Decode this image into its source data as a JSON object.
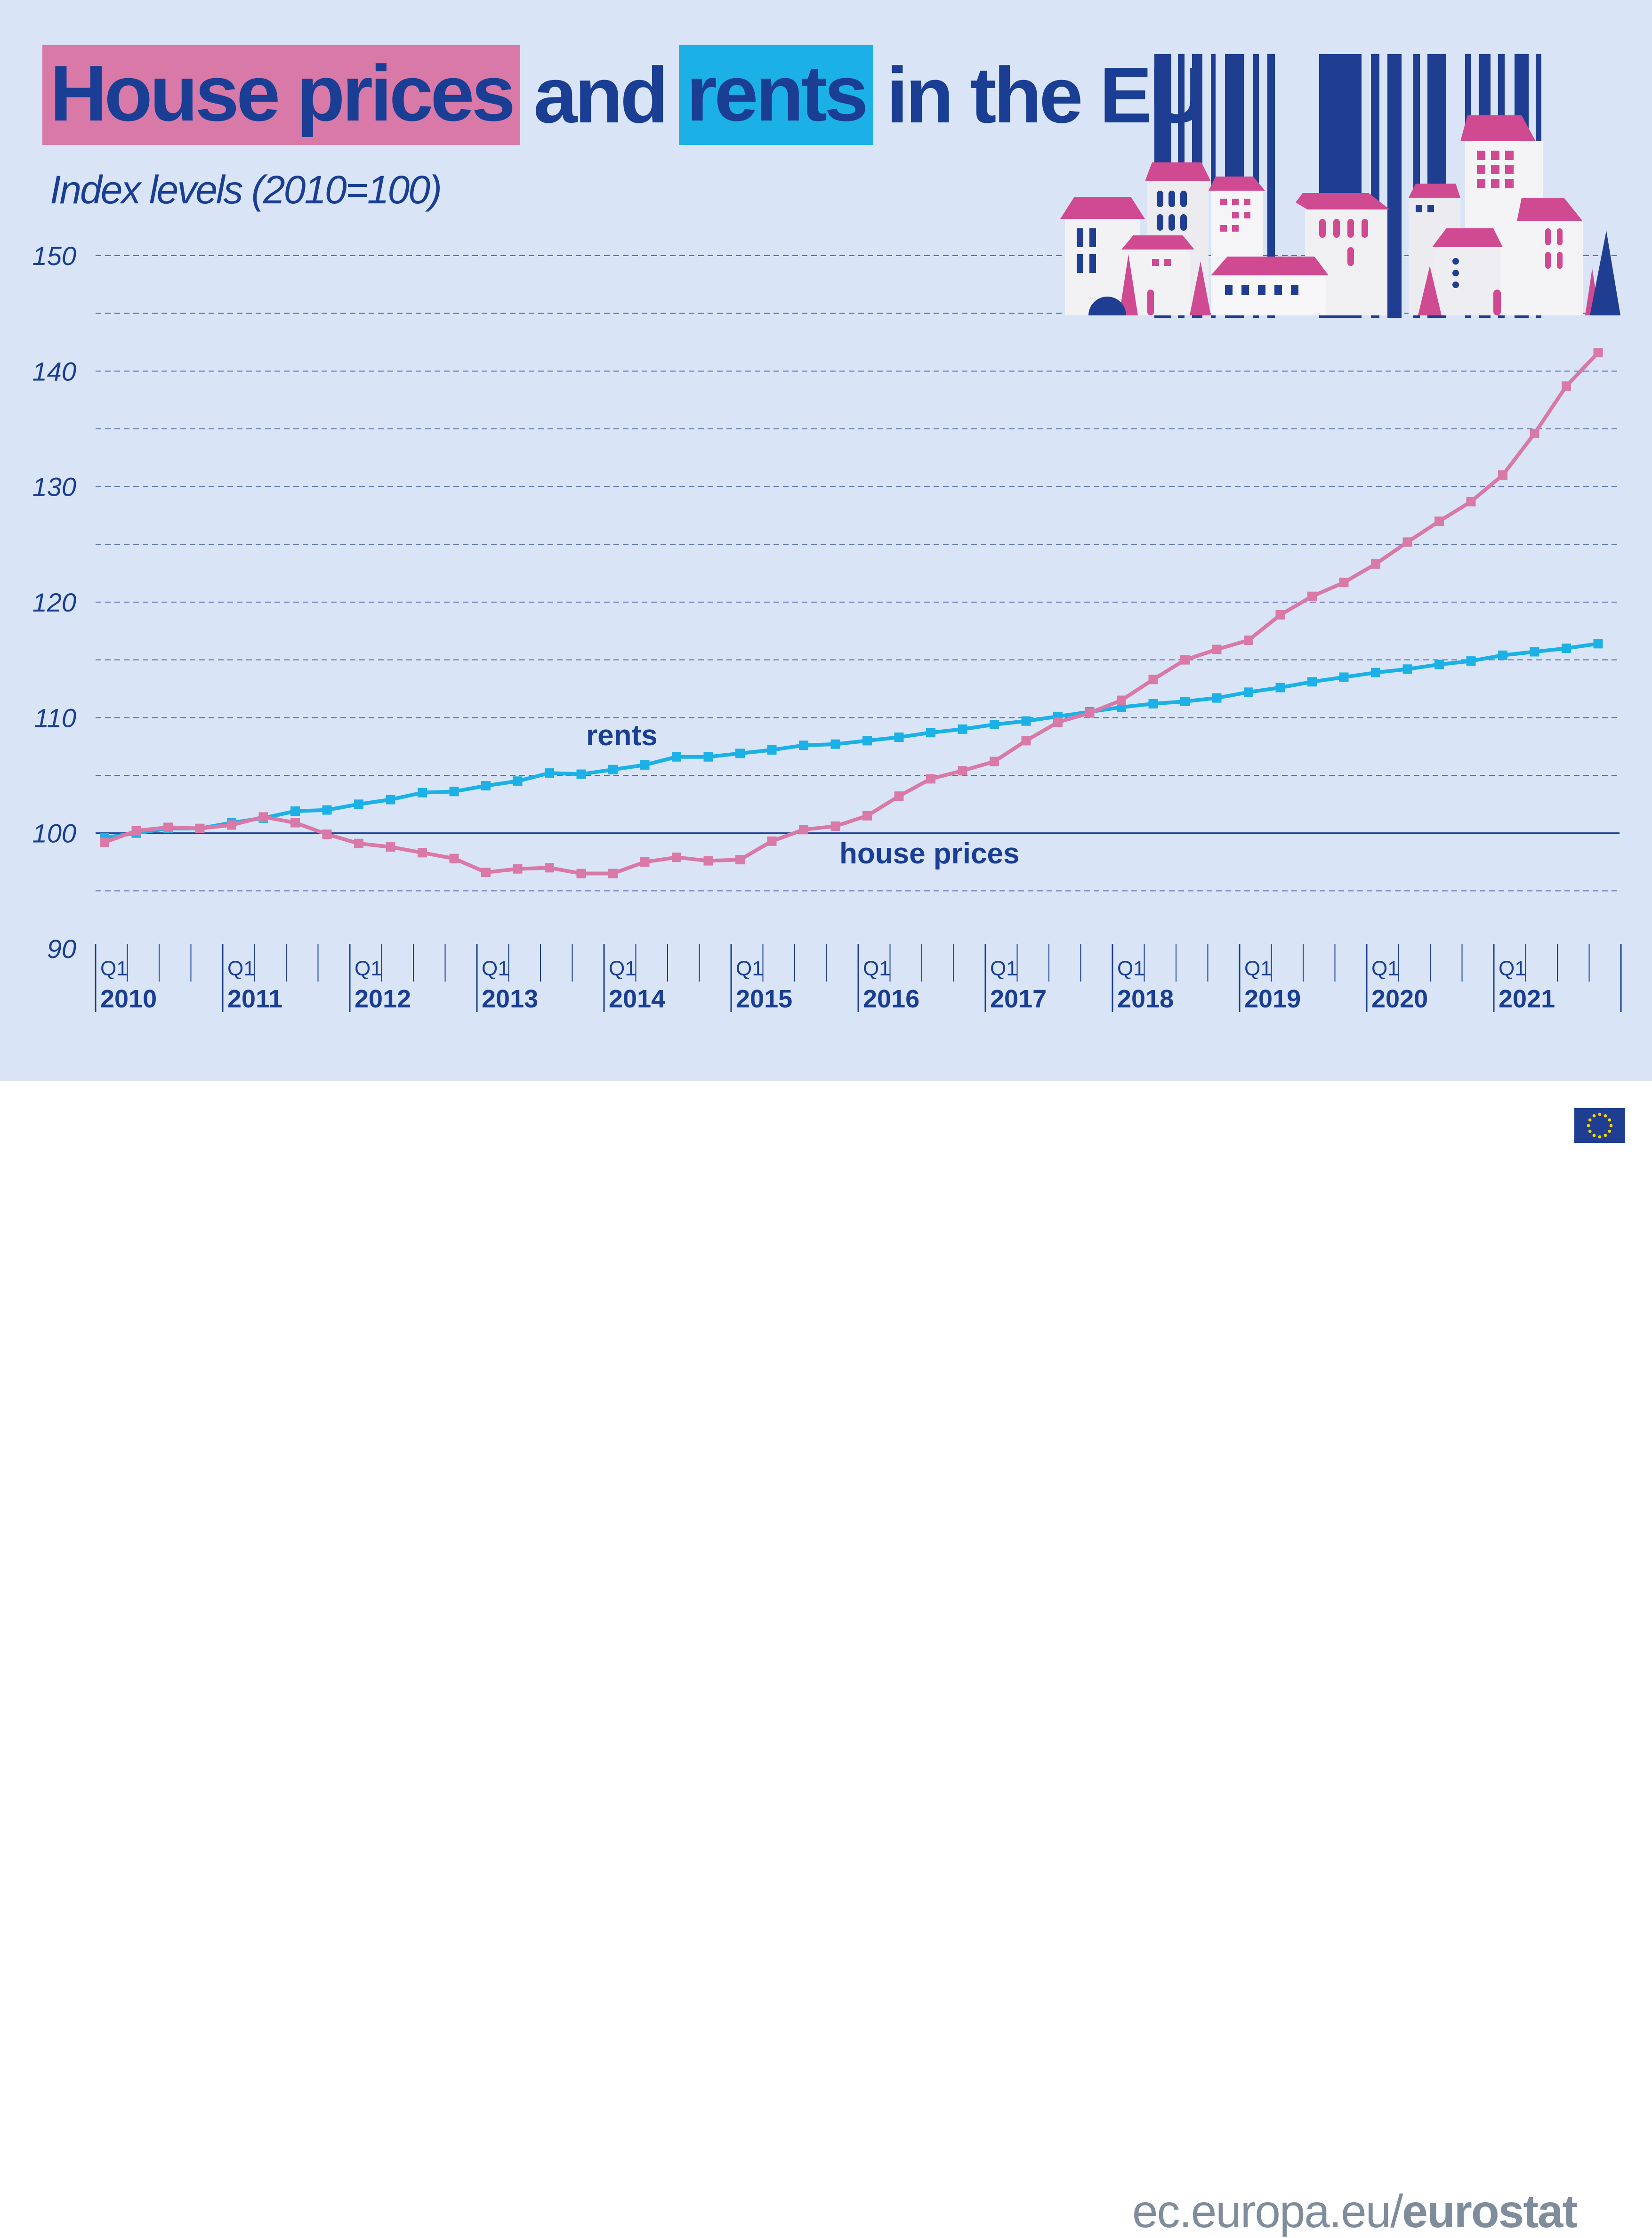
{
  "header": {
    "title_part1": "House prices",
    "title_part2": "and",
    "title_part3": "rents",
    "title_part4": "in the EU",
    "subtitle": "Index levels (2010=100)"
  },
  "footer": {
    "site_prefix": "ec.europa.eu/",
    "site_brand": "eurostat",
    "flag_icon": "eu-flag-icon"
  },
  "colors": {
    "background": "#d9e5f6",
    "title_blue": "#1a3e93",
    "house_prices": "#d979a8",
    "rents": "#1bb1e7",
    "footer_text": "#7f8c9c"
  },
  "chart_data": {
    "type": "line",
    "title": "House prices and rents in the EU",
    "subtitle": "Index levels (2010=100)",
    "ylim": [
      90,
      150
    ],
    "y_ticks": [
      90,
      100,
      110,
      120,
      130,
      140,
      150
    ],
    "grid": "dashed horizontal lines every 5 units; solid line at 100",
    "x_quarter_label": "Q1",
    "years": [
      "2010",
      "2011",
      "2012",
      "2013",
      "2014",
      "2015",
      "2016",
      "2017",
      "2018",
      "2019",
      "2020",
      "2021"
    ],
    "series": [
      {
        "name": "rents",
        "color": "#1bb1e7",
        "values": [
          99.6,
          100.0,
          100.4,
          100.4,
          100.9,
          101.3,
          101.9,
          102.0,
          102.5,
          102.9,
          103.5,
          103.6,
          104.1,
          104.5,
          105.2,
          105.1,
          105.5,
          105.9,
          106.6,
          106.6,
          106.9,
          107.2,
          107.6,
          107.7,
          108.0,
          108.3,
          108.7,
          109.0,
          109.4,
          109.7,
          110.1,
          110.5,
          110.9,
          111.2,
          111.4,
          111.7,
          112.2,
          112.6,
          113.1,
          113.5,
          113.9,
          114.2,
          114.6,
          114.9,
          115.4,
          115.7,
          116.0,
          116.4
        ]
      },
      {
        "name": "house prices",
        "color": "#d979a8",
        "values": [
          99.2,
          100.2,
          100.5,
          100.4,
          100.7,
          101.4,
          100.9,
          99.9,
          99.1,
          98.8,
          98.3,
          97.8,
          96.6,
          96.9,
          97.0,
          96.5,
          96.5,
          97.5,
          97.9,
          97.6,
          97.7,
          99.3,
          100.3,
          100.6,
          101.5,
          103.2,
          104.7,
          105.4,
          106.2,
          108.0,
          109.6,
          110.4,
          111.5,
          113.3,
          115.0,
          115.9,
          116.7,
          118.9,
          120.5,
          121.7,
          123.3,
          125.2,
          127.0,
          128.7,
          131.0,
          134.6,
          138.7,
          141.6
        ]
      }
    ],
    "annotations": [
      {
        "text": "rents",
        "series": "rents"
      },
      {
        "text": "house prices",
        "series": "house prices"
      }
    ]
  }
}
